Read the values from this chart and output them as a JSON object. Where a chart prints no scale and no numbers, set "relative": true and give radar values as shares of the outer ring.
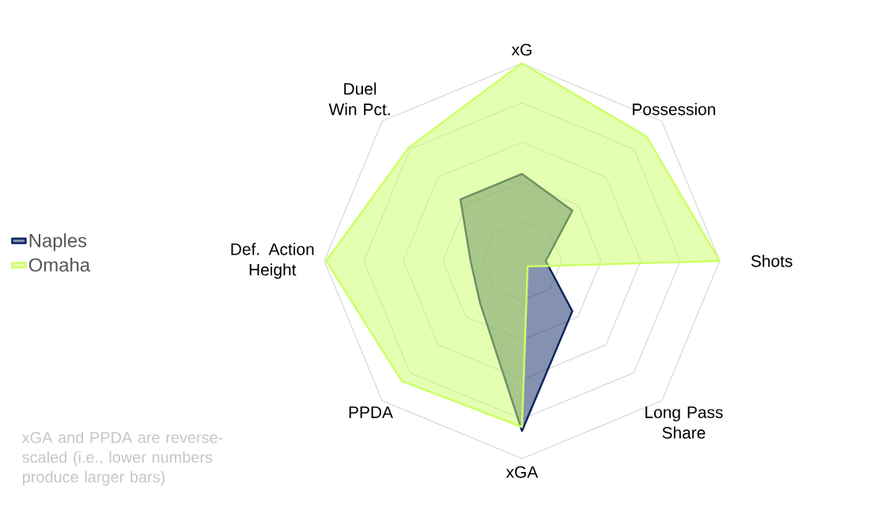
{
  "chart_data": {
    "type": "radar",
    "relative": true,
    "grid": true,
    "legend": "left",
    "categories": [
      "xG",
      "Possession",
      "Shots",
      "Long Pass Share",
      "xGA",
      "PPDA",
      "Def. Action Height",
      "Duel Win Pct."
    ],
    "series": [
      {
        "name": "Naples",
        "color": "#0c2461",
        "values": [
          0.44,
          0.36,
          0.12,
          0.36,
          0.86,
          0.3,
          0.26,
          0.44
        ]
      },
      {
        "name": "Omaha",
        "color": "#ccff66",
        "values": [
          1.0,
          0.89,
          1.0,
          0.04,
          0.84,
          0.86,
          0.99,
          0.81
        ]
      }
    ],
    "annotations": [
      "xGA and PPDA are reverse-scaled (i.e., lower numbers produce larger bars)"
    ]
  }
}
